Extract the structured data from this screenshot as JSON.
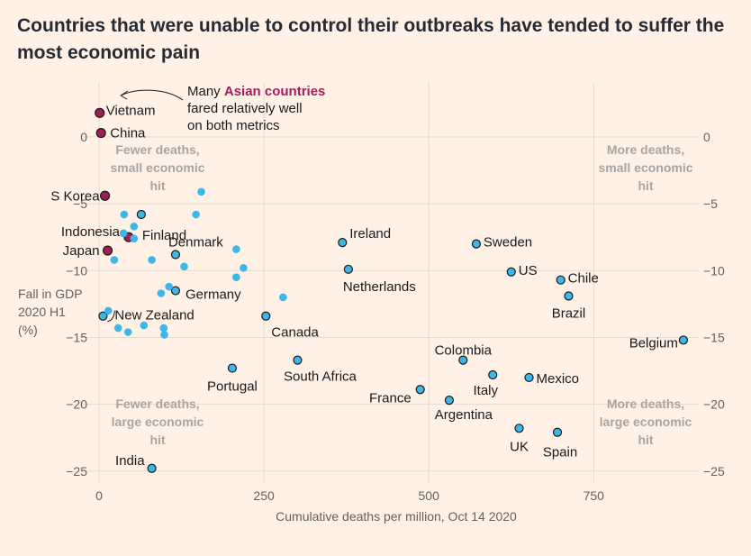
{
  "header": {
    "title": "Countries that were unable to control their outbreaks have tended to suffer the most economic pain"
  },
  "colors": {
    "background": "#fff1e5",
    "point_fill": "#3fb6e8",
    "point_highlight": "#9e1f56",
    "annotation_highlight": "#a11d5e",
    "quadrant_text": "#aaa4a0",
    "grid": "#e6d9ce"
  },
  "annotation": {
    "line1_prefix": "Many ",
    "line1_highlight": "Asian countries",
    "line2": "fared relatively well",
    "line3": "on both metrics"
  },
  "quadrants": {
    "top_left": [
      "Fewer deaths,",
      "small economic",
      "hit"
    ],
    "top_right": [
      "More deaths,",
      "small economic",
      "hit"
    ],
    "bottom_left": [
      "Fewer deaths,",
      "large economic",
      "hit"
    ],
    "bottom_right": [
      "More deaths,",
      "large economic",
      "hit"
    ]
  },
  "chart_data": {
    "type": "scatter",
    "title": "Countries that were unable to control their outbreaks have tended to suffer the most economic pain",
    "xlabel": "Cumulative deaths per million, Oct 14 2020",
    "ylabel": [
      "Fall in GDP",
      "2020 H1",
      "(%)"
    ],
    "xlim": [
      -5,
      900
    ],
    "ylim": [
      -26,
      3
    ],
    "x_ticks": [
      "0",
      "250",
      "500",
      "750"
    ],
    "y_ticks": [
      "0",
      "−5",
      "−10",
      "−15",
      "−20",
      "−25"
    ],
    "grid": true,
    "points": [
      {
        "label": "Vietnam",
        "x": 1,
        "y": 1.8,
        "group": "asian"
      },
      {
        "label": "China",
        "x": 3,
        "y": 0.3,
        "group": "asian"
      },
      {
        "label": "S Korea",
        "x": 9,
        "y": -4.4,
        "group": "asian"
      },
      {
        "label": "Indonesia",
        "x": 45,
        "y": -7.5,
        "group": "asian"
      },
      {
        "label": "Japan",
        "x": 13,
        "y": -8.5,
        "group": "asian"
      },
      {
        "label": "Finland",
        "x": 64,
        "y": -5.8,
        "group": "labeled"
      },
      {
        "label": "Denmark",
        "x": 116,
        "y": -8.8,
        "group": "labeled"
      },
      {
        "label": "Germany",
        "x": 116,
        "y": -11.5,
        "group": "labeled"
      },
      {
        "label": "New Zealand",
        "x": 6,
        "y": -13.4,
        "group": "labeled"
      },
      {
        "label": "Canada",
        "x": 253,
        "y": -13.4,
        "group": "labeled"
      },
      {
        "label": "Ireland",
        "x": 369,
        "y": -7.9,
        "group": "labeled"
      },
      {
        "label": "Netherlands",
        "x": 378,
        "y": -9.9,
        "group": "labeled"
      },
      {
        "label": "Sweden",
        "x": 572,
        "y": -8.0,
        "group": "labeled"
      },
      {
        "label": "US",
        "x": 625,
        "y": -10.1,
        "group": "labeled"
      },
      {
        "label": "Chile",
        "x": 700,
        "y": -10.7,
        "group": "labeled"
      },
      {
        "label": "Brazil",
        "x": 712,
        "y": -11.9,
        "group": "labeled"
      },
      {
        "label": "Belgium",
        "x": 886,
        "y": -15.2,
        "group": "labeled"
      },
      {
        "label": "Colombia",
        "x": 552,
        "y": -16.7,
        "group": "labeled"
      },
      {
        "label": "Italy",
        "x": 597,
        "y": -17.8,
        "group": "labeled"
      },
      {
        "label": "Mexico",
        "x": 652,
        "y": -18.0,
        "group": "labeled"
      },
      {
        "label": "France",
        "x": 487,
        "y": -18.9,
        "group": "labeled"
      },
      {
        "label": "Argentina",
        "x": 531,
        "y": -19.7,
        "group": "labeled"
      },
      {
        "label": "UK",
        "x": 637,
        "y": -21.8,
        "group": "labeled"
      },
      {
        "label": "Spain",
        "x": 695,
        "y": -22.1,
        "group": "labeled"
      },
      {
        "label": "South Africa",
        "x": 301,
        "y": -16.7,
        "group": "labeled"
      },
      {
        "label": "Portugal",
        "x": 202,
        "y": -17.3,
        "group": "labeled"
      },
      {
        "label": "India",
        "x": 80,
        "y": -24.8,
        "group": "labeled"
      },
      {
        "label": "",
        "x": 155,
        "y": -4.1,
        "group": "other"
      },
      {
        "label": "",
        "x": 147,
        "y": -5.8,
        "group": "other"
      },
      {
        "label": "",
        "x": 38,
        "y": -5.8,
        "group": "other"
      },
      {
        "label": "",
        "x": 53,
        "y": -6.7,
        "group": "other"
      },
      {
        "label": "",
        "x": 37,
        "y": -7.2,
        "group": "other"
      },
      {
        "label": "",
        "x": 53,
        "y": -7.6,
        "group": "other"
      },
      {
        "label": "",
        "x": 208,
        "y": -8.4,
        "group": "other"
      },
      {
        "label": "",
        "x": 23,
        "y": -9.2,
        "group": "other"
      },
      {
        "label": "",
        "x": 80,
        "y": -9.2,
        "group": "other"
      },
      {
        "label": "",
        "x": 129,
        "y": -9.7,
        "group": "other"
      },
      {
        "label": "",
        "x": 219,
        "y": -9.8,
        "group": "other"
      },
      {
        "label": "",
        "x": 208,
        "y": -10.5,
        "group": "other"
      },
      {
        "label": "",
        "x": 106,
        "y": -11.2,
        "group": "other"
      },
      {
        "label": "",
        "x": 94,
        "y": -11.7,
        "group": "other"
      },
      {
        "label": "",
        "x": 279,
        "y": -12.0,
        "group": "other"
      },
      {
        "label": "",
        "x": 14,
        "y": -13.0,
        "group": "other"
      },
      {
        "label": "",
        "x": 29,
        "y": -14.3,
        "group": "other"
      },
      {
        "label": "",
        "x": 44,
        "y": -14.6,
        "group": "other"
      },
      {
        "label": "",
        "x": 68,
        "y": -14.1,
        "group": "other"
      },
      {
        "label": "",
        "x": 98,
        "y": -14.3,
        "group": "other"
      },
      {
        "label": "",
        "x": 99,
        "y": -14.8,
        "group": "other"
      }
    ]
  }
}
